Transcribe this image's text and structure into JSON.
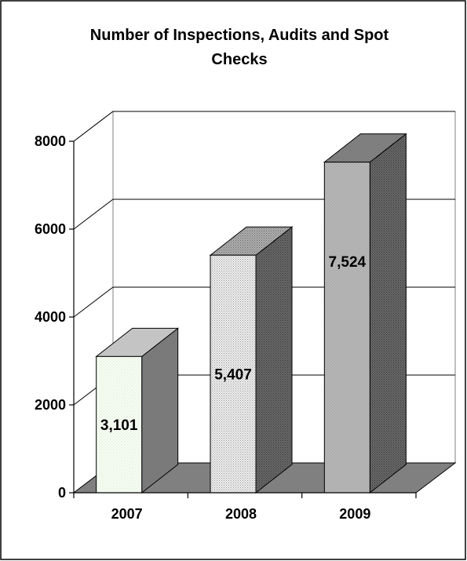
{
  "chart_data": {
    "type": "bar",
    "title": "Number of Inspections, Audits and Spot Checks",
    "title_lines": [
      "Number of Inspections, Audits and Spot",
      "Checks"
    ],
    "categories": [
      "2007",
      "2008",
      "2009"
    ],
    "values": [
      3101,
      5407,
      7524
    ],
    "data_labels": [
      "3,101",
      "5,407",
      "7,524"
    ],
    "y_ticks": [
      0,
      2000,
      4000,
      6000,
      8000
    ],
    "y_tick_labels": [
      "0",
      "2000",
      "4000",
      "6000",
      "8000"
    ],
    "ylim": [
      0,
      8000
    ],
    "xlabel": "",
    "ylabel": "",
    "grid": true,
    "legend": "none",
    "style": "3d",
    "bar_colors": [
      "#f4fbf0",
      "#f0f0f0",
      "#d8d8d8"
    ],
    "side_colors": [
      "#7a7a7a",
      "#6a6a6a",
      "#6a6a6a"
    ],
    "top_colors": [
      "#c4c4c4",
      "#b0b0b0",
      "#a8a8a8"
    ],
    "floor_color": "#808080"
  }
}
